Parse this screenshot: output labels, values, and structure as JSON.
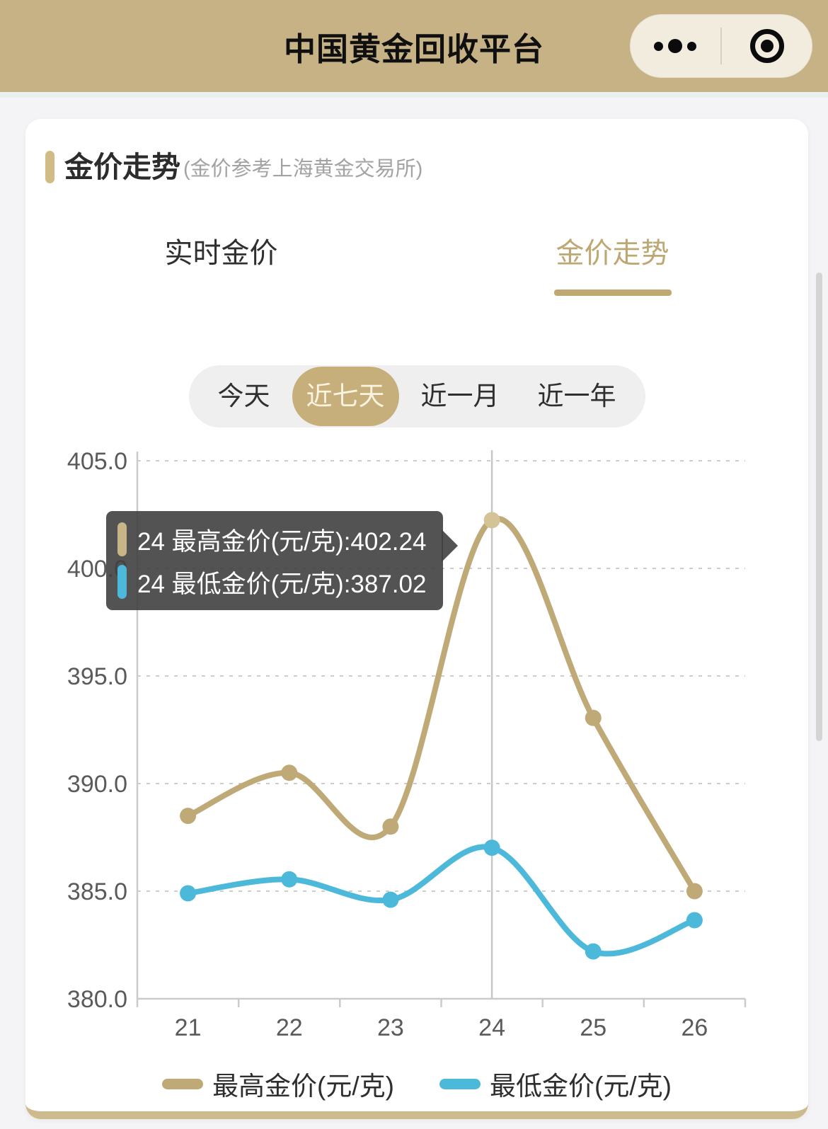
{
  "header": {
    "title": "中国黄金回收平台",
    "more_icon": "more-dots-icon",
    "exit_icon": "target-circle-icon"
  },
  "card": {
    "section_title": "金价走势",
    "section_subtitle": "(金价参考上海黄金交易所)",
    "tabs": [
      {
        "label": "实时金价",
        "active": false
      },
      {
        "label": "金价走势",
        "active": true
      }
    ],
    "periods": [
      {
        "label": "今天",
        "selected": false
      },
      {
        "label": "近七天",
        "selected": true
      },
      {
        "label": "近一月",
        "selected": false
      },
      {
        "label": "近一年",
        "selected": false
      }
    ]
  },
  "tooltip": {
    "rows": [
      {
        "marker_color": "#c8b587",
        "text": "24 最高金价(元/克):402.24"
      },
      {
        "marker_color": "#4cb9da",
        "text": "24 最低金价(元/克):387.02"
      }
    ]
  },
  "chart_data": {
    "type": "line",
    "x": [
      21,
      22,
      23,
      24,
      25,
      26
    ],
    "series": [
      {
        "name": "最高金价(元/克)",
        "color": "#bfa976",
        "values": [
          388.5,
          390.5,
          388.0,
          402.24,
          393.05,
          385.0
        ]
      },
      {
        "name": "最低金价(元/克)",
        "color": "#4cb9da",
        "values": [
          384.9,
          385.55,
          384.6,
          387.02,
          382.2,
          383.65
        ]
      }
    ],
    "ylim": [
      380,
      405
    ],
    "ytick_step": 5,
    "ytick_format_decimals": 1,
    "grid": "horizontal-dashed",
    "legend_position": "bottom",
    "highlight_x": 24,
    "smooth": true
  },
  "colors": {
    "header_bg": "#c6b285",
    "accent_gold": "#c0a873",
    "highlight_dot": "#d5c398",
    "tooltip_bg": "rgba(64,64,64,0.90)",
    "axis_text": "#5a5a5a",
    "grid_line": "#cdcdcd"
  }
}
